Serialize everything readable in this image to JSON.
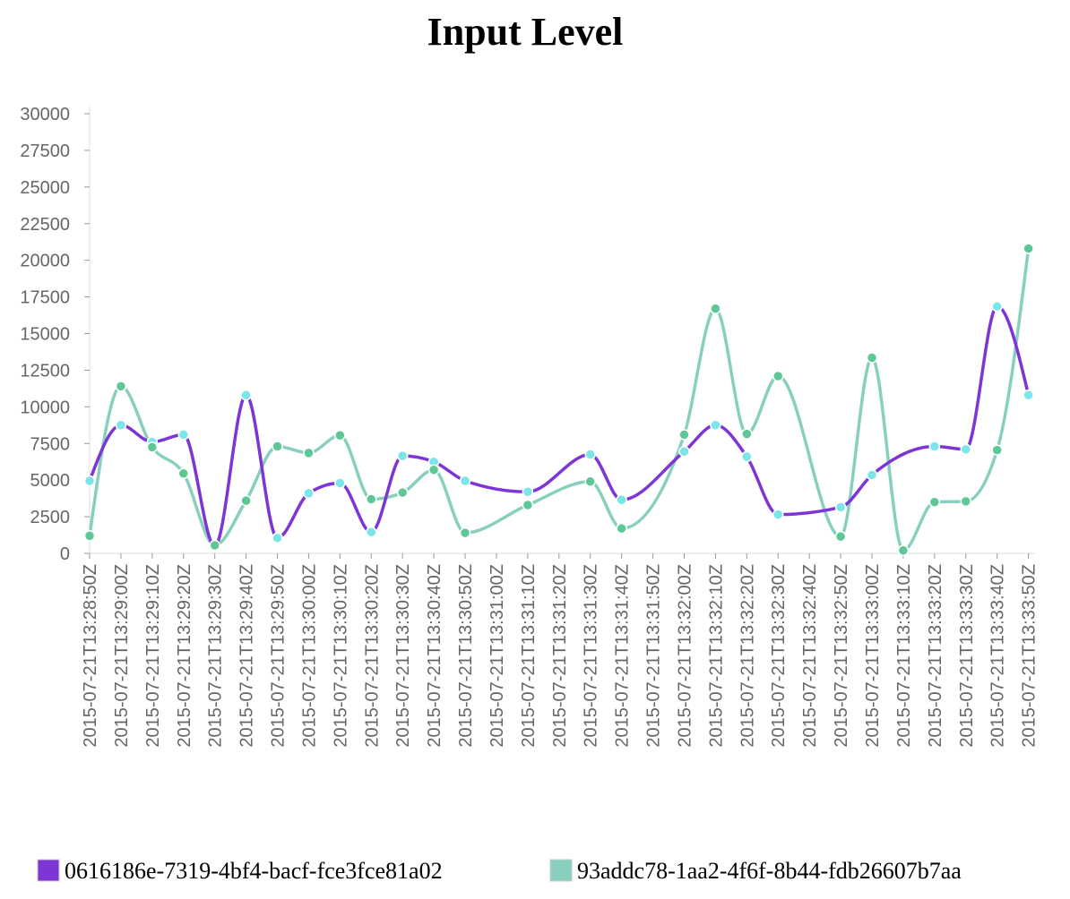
{
  "chart_data": {
    "type": "line",
    "title": "Input Level",
    "xlabel": "",
    "ylabel": "",
    "ylim": [
      0,
      30000
    ],
    "yticks": [
      0,
      2500,
      5000,
      7500,
      10000,
      12500,
      15000,
      17500,
      20000,
      22500,
      25000,
      27500,
      30000
    ],
    "x": [
      "2015-07-21T13:28:50Z",
      "2015-07-21T13:29:00Z",
      "2015-07-21T13:29:10Z",
      "2015-07-21T13:29:20Z",
      "2015-07-21T13:29:30Z",
      "2015-07-21T13:29:40Z",
      "2015-07-21T13:29:50Z",
      "2015-07-21T13:30:00Z",
      "2015-07-21T13:30:10Z",
      "2015-07-21T13:30:20Z",
      "2015-07-21T13:30:30Z",
      "2015-07-21T13:30:40Z",
      "2015-07-21T13:30:50Z",
      "2015-07-21T13:31:00Z",
      "2015-07-21T13:31:10Z",
      "2015-07-21T13:31:20Z",
      "2015-07-21T13:31:30Z",
      "2015-07-21T13:31:40Z",
      "2015-07-21T13:31:50Z",
      "2015-07-21T13:32:00Z",
      "2015-07-21T13:32:10Z",
      "2015-07-21T13:32:20Z",
      "2015-07-21T13:32:30Z",
      "2015-07-21T13:32:40Z",
      "2015-07-21T13:32:50Z",
      "2015-07-21T13:33:00Z",
      "2015-07-21T13:33:10Z",
      "2015-07-21T13:33:20Z",
      "2015-07-21T13:33:30Z",
      "2015-07-21T13:33:40Z",
      "2015-07-21T13:33:50Z"
    ],
    "series": [
      {
        "name": "0616186e-7319-4bf4-bacf-fce3fce81a02",
        "color": "#7e35d6",
        "marker_color": "#7ae6e9",
        "values": [
          4950,
          8750,
          7600,
          8100,
          500,
          10800,
          1050,
          4100,
          4800,
          1450,
          6650,
          6250,
          4950,
          null,
          4200,
          null,
          6750,
          3650,
          null,
          6950,
          8750,
          6600,
          2650,
          null,
          3150,
          5350,
          null,
          7300,
          7100,
          16850,
          10800
        ]
      },
      {
        "name": "93addc78-1aa2-4f6f-8b44-fdb26607b7aa",
        "color": "#88cfc0",
        "marker_color": "#5ec796",
        "values": [
          1200,
          11400,
          7250,
          5450,
          550,
          3600,
          7300,
          6850,
          8050,
          3700,
          4150,
          5700,
          1400,
          null,
          3300,
          null,
          4900,
          1700,
          null,
          8100,
          16700,
          8150,
          12100,
          null,
          1150,
          13350,
          200,
          3500,
          3550,
          7050,
          20800
        ]
      }
    ],
    "legend_position": "bottom",
    "grid": false
  }
}
